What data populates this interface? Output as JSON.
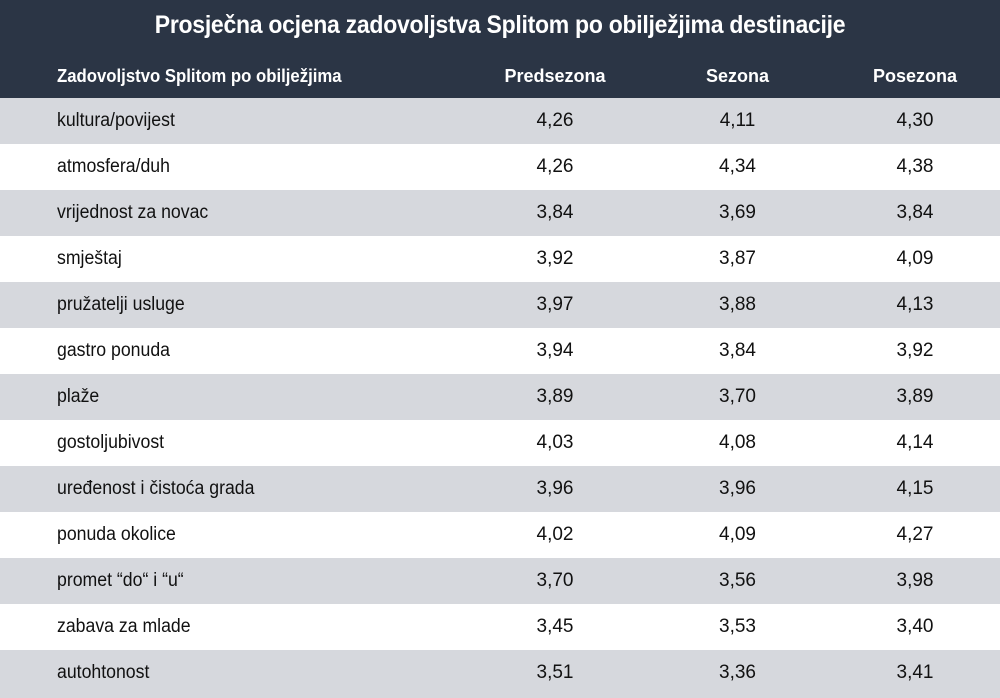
{
  "table": {
    "title": "Prosječna ocjena zadovoljstva Splitom po obilježjima destinacije",
    "columns": [
      "Zadovoljstvo Splitom po obilježjima",
      "Predsezona",
      "Sezona",
      "Posezona"
    ],
    "rows": [
      {
        "label": "kultura/povijest",
        "predsezona": "4,26",
        "sezona": "4,11",
        "posezona": "4,30"
      },
      {
        "label": "atmosfera/duh",
        "predsezona": "4,26",
        "sezona": "4,34",
        "posezona": "4,38"
      },
      {
        "label": "vrijednost za novac",
        "predsezona": "3,84",
        "sezona": "3,69",
        "posezona": "3,84"
      },
      {
        "label": "smještaj",
        "predsezona": "3,92",
        "sezona": "3,87",
        "posezona": "4,09"
      },
      {
        "label": "pružatelji usluge",
        "predsezona": "3,97",
        "sezona": "3,88",
        "posezona": "4,13"
      },
      {
        "label": "gastro ponuda",
        "predsezona": "3,94",
        "sezona": "3,84",
        "posezona": "3,92"
      },
      {
        "label": "plaže",
        "predsezona": "3,89",
        "sezona": "3,70",
        "posezona": "3,89"
      },
      {
        "label": "gostoljubivost",
        "predsezona": "4,03",
        "sezona": "4,08",
        "posezona": "4,14"
      },
      {
        "label": "uređenost i čistoća grada",
        "predsezona": "3,96",
        "sezona": "3,96",
        "posezona": "4,15"
      },
      {
        "label": "ponuda okolice",
        "predsezona": "4,02",
        "sezona": "4,09",
        "posezona": "4,27"
      },
      {
        "label": "promet “do“ i “u“",
        "predsezona": "3,70",
        "sezona": "3,56",
        "posezona": "3,98"
      },
      {
        "label": "zabava za mlade",
        "predsezona": "3,45",
        "sezona": "3,53",
        "posezona": "3,40"
      },
      {
        "label": "autohtonost",
        "predsezona": "3,51",
        "sezona": "3,36",
        "posezona": "3,41"
      }
    ]
  },
  "colors": {
    "header_bg": "#2b3545",
    "row_shade": "#d6d8dd",
    "row_plain": "#ffffff"
  }
}
